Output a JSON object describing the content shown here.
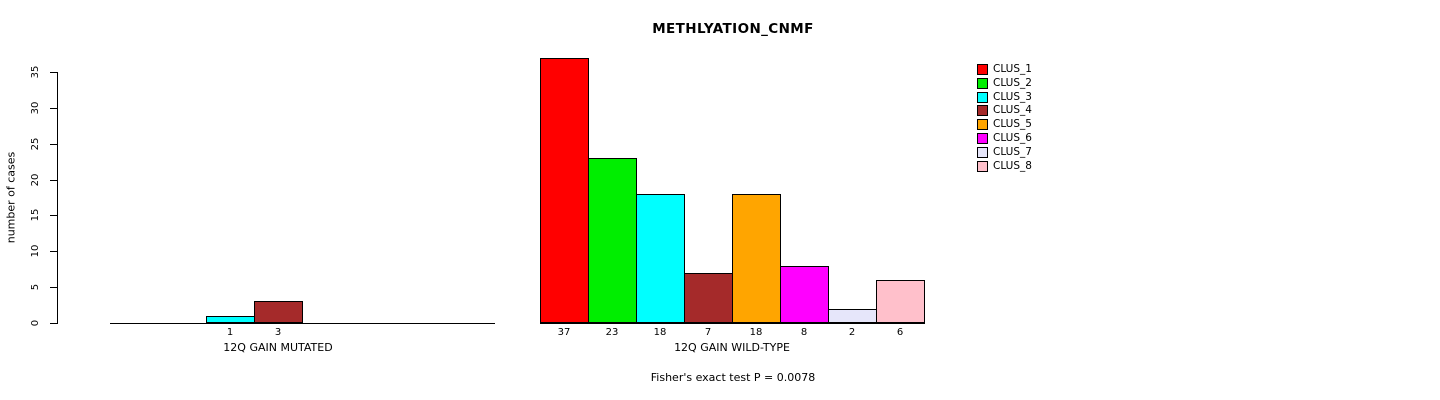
{
  "chart_data": {
    "type": "bar",
    "title": "METHLYATION_CNMF",
    "ylabel": "number of cases",
    "annotation": "Fisher's exact test P = 0.0078",
    "ylim": [
      0,
      35
    ],
    "yticks": [
      0,
      5,
      10,
      15,
      20,
      25,
      30,
      35
    ],
    "grid": false,
    "legend_position": "topright",
    "series_names": [
      "CLUS_1",
      "CLUS_2",
      "CLUS_3",
      "CLUS_4",
      "CLUS_5",
      "CLUS_6",
      "CLUS_7",
      "CLUS_8"
    ],
    "series_colors": [
      "#FF0000",
      "#00EE00",
      "#00FFFF",
      "#A52A2A",
      "#FFA500",
      "#FF00FF",
      "#E6E6FA",
      "#FFC0CB"
    ],
    "groups": [
      {
        "label": "12Q GAIN MUTATED",
        "values": [
          0,
          0,
          1,
          3,
          0,
          0,
          0,
          0
        ]
      },
      {
        "label": "12Q GAIN WILD-TYPE",
        "values": [
          37,
          23,
          18,
          7,
          18,
          8,
          2,
          6
        ]
      }
    ]
  }
}
